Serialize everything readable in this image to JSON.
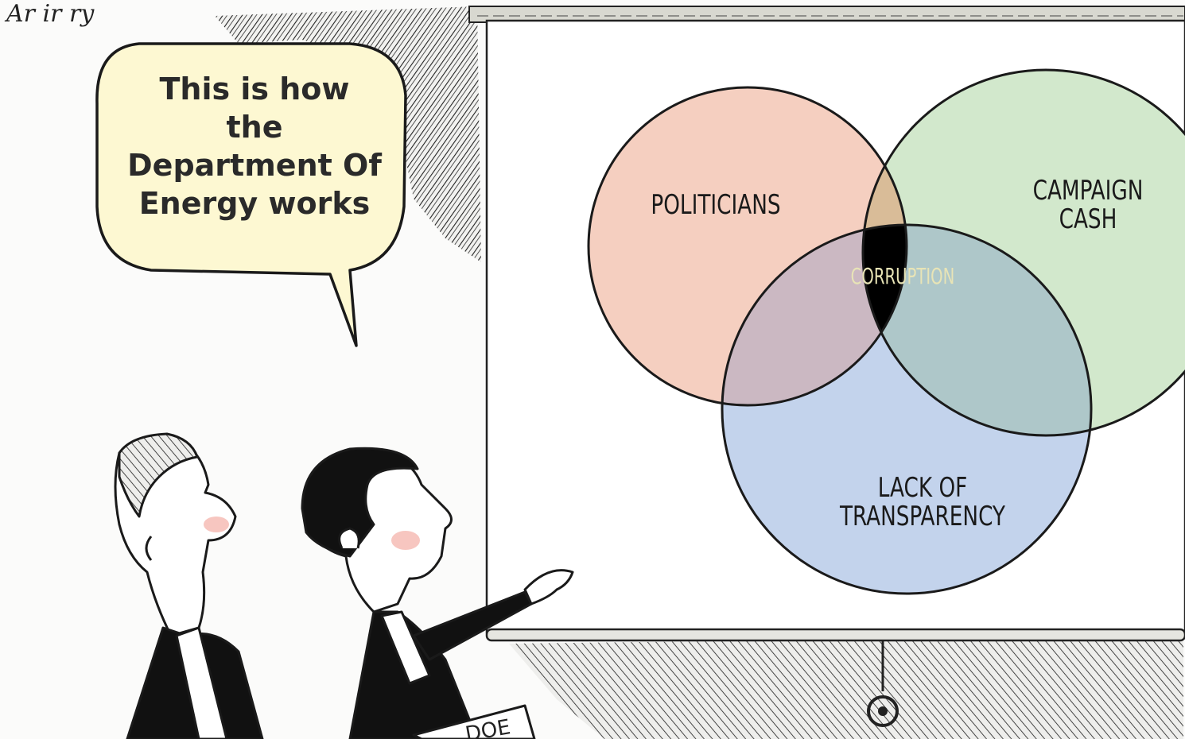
{
  "cartoon": {
    "signature": "Ar ir ry",
    "speech_bubble": {
      "lines": [
        "This is how",
        "the",
        "Department Of",
        "Energy works"
      ]
    },
    "venn": {
      "sets": [
        {
          "label": "POLITICIANS",
          "color": "#f5cfc0"
        },
        {
          "label_lines": [
            "CAMPAIGN",
            "CASH"
          ],
          "color": "#d2e8cc"
        },
        {
          "label_lines": [
            "LACK OF",
            "TRANSPARENCY"
          ],
          "color": "#c3d3ec"
        }
      ],
      "center_label": "CORRUPTION",
      "overlap_colors": {
        "politicians_cash": "#d9bc98",
        "politicians_lack": "#cbb8c2",
        "cash_lack": "#aec7c9",
        "center": "#000000"
      }
    },
    "folder_text": "DOE",
    "colors": {
      "background": "#fbfbfa",
      "bubble_fill": "#fdf8d2",
      "ink": "#1a1a1a"
    }
  }
}
